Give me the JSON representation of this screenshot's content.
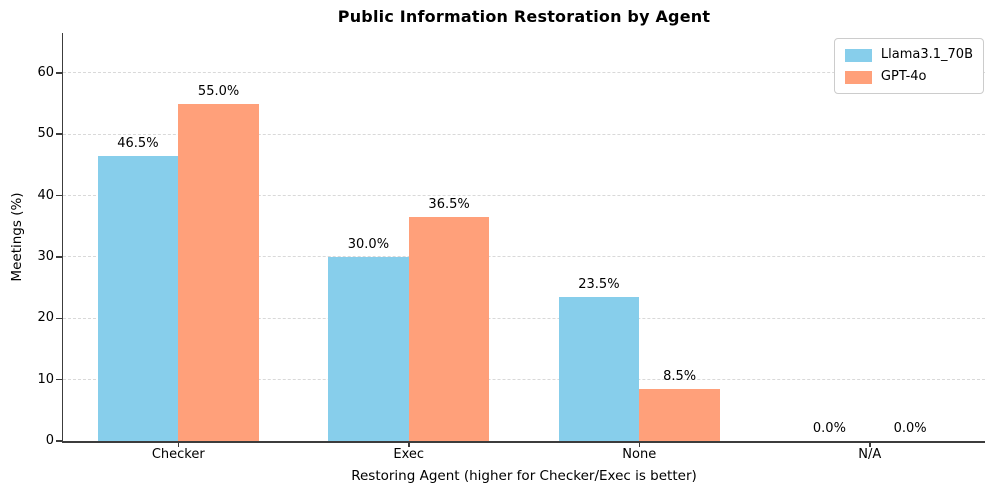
{
  "title": "Public Information Restoration by Agent",
  "chart_data": {
    "type": "bar",
    "title": "Public Information Restoration by Agent",
    "categories": [
      "Checker",
      "Exec",
      "None",
      "N/A"
    ],
    "series": [
      {
        "name": "Llama3.1_70B",
        "color": "#87CEEB",
        "values": [
          46.5,
          30.0,
          23.5,
          0.0
        ],
        "labels": [
          "46.5%",
          "30.0%",
          "23.5%",
          "0.0%"
        ]
      },
      {
        "name": "GPT-4o",
        "color": "#FFA07A",
        "values": [
          55.0,
          36.5,
          8.5,
          0.0
        ],
        "labels": [
          "55.0%",
          "36.5%",
          "8.5%",
          "0.0%"
        ]
      }
    ],
    "xlabel": "Restoring Agent (higher for Checker/Exec is better)",
    "ylabel": "Meetings (%)",
    "ylim": [
      0,
      66.5
    ],
    "yticks": [
      0,
      10,
      20,
      30,
      40,
      50,
      60
    ],
    "grid": "dashed-horizontal-y",
    "legend_position": "upper right",
    "axis_color": "#3c3c3c",
    "grid_color": "#d9d9d9"
  }
}
